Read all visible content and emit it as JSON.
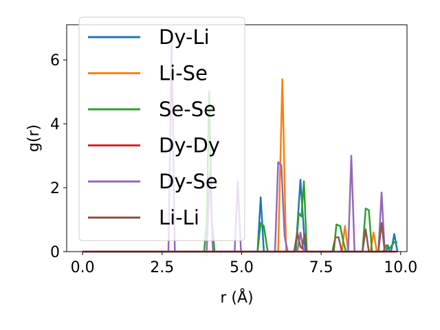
{
  "chart_data": {
    "type": "line",
    "xlabel": "r (Å)",
    "ylabel": "g(r)",
    "xlim": [
      -0.5,
      10.2
    ],
    "ylim": [
      0,
      7.1
    ],
    "xticks": [
      0.0,
      2.5,
      5.0,
      7.5,
      10.0
    ],
    "xtick_labels": [
      "0.0",
      "2.5",
      "5.0",
      "7.5",
      "10.0"
    ],
    "yticks": [
      0,
      2,
      4,
      6
    ],
    "ytick_labels": [
      "0",
      "2",
      "4",
      "6"
    ],
    "grid": false,
    "legend_position": "top-left",
    "series": [
      {
        "name": "Dy-Li",
        "color": "#1f77b4",
        "x": [
          0,
          5.5,
          5.6,
          5.7,
          6.7,
          6.85,
          7.0,
          9.55,
          9.6,
          9.65,
          9.7,
          9.8,
          9.9
        ],
        "y": [
          0,
          0,
          1.7,
          0,
          0,
          2.25,
          0,
          0,
          0.2,
          0,
          0,
          0.55,
          0
        ]
      },
      {
        "name": "Li-Se",
        "color": "#ff7f0e",
        "x": [
          0,
          6.15,
          6.28,
          6.4,
          8.15,
          8.25,
          8.35,
          9.05,
          9.15,
          9.25
        ],
        "y": [
          0,
          0,
          5.4,
          0,
          0,
          0.8,
          0,
          0,
          0.6,
          0
        ]
      },
      {
        "name": "Se-Se",
        "color": "#2ca02c",
        "x": [
          0,
          3.82,
          3.9,
          3.98,
          4.06,
          4.15,
          5.5,
          5.6,
          5.7,
          5.82,
          6.7,
          6.8,
          6.88,
          6.96,
          7.05,
          7.9,
          7.98,
          8.1,
          8.2,
          8.28,
          8.8,
          8.9,
          9.0,
          9.1,
          9.45,
          9.55,
          9.65,
          9.8,
          9.9
        ],
        "y": [
          0,
          0,
          0.9,
          5.0,
          1.0,
          0,
          0,
          0.9,
          0.8,
          0,
          0,
          1.2,
          1.1,
          2.2,
          0,
          0,
          0.85,
          0.8,
          0.3,
          0,
          0,
          1.35,
          1.3,
          0,
          0,
          0.2,
          0.1,
          0.3,
          0.3
        ]
      },
      {
        "name": "Dy-Dy",
        "color": "#d62728",
        "x": [
          0,
          9.9
        ],
        "y": [
          0,
          0
        ]
      },
      {
        "name": "Dy-Se",
        "color": "#9467bd",
        "x": [
          0,
          2.7,
          2.8,
          2.9,
          3.9,
          4.0,
          4.1,
          4.78,
          4.88,
          4.98,
          6.05,
          6.15,
          6.25,
          6.35,
          6.45,
          6.75,
          6.85,
          6.95,
          8.35,
          8.45,
          8.55,
          9.3,
          9.4,
          9.5
        ],
        "y": [
          0,
          0,
          6.6,
          0,
          0,
          2.5,
          0,
          0,
          2.2,
          0,
          0,
          2.8,
          2.7,
          0.5,
          0,
          0,
          0.6,
          0,
          0,
          3.0,
          0,
          0,
          1.85,
          0
        ]
      },
      {
        "name": "Li-Li",
        "color": "#8c564b",
        "x": [
          0,
          6.65,
          6.75,
          6.85,
          6.9,
          6.98,
          7.05,
          7.85,
          7.95,
          8.05,
          8.15,
          8.8,
          8.9,
          9.0,
          9.3,
          9.4,
          9.5
        ],
        "y": [
          0,
          0,
          0.6,
          0.15,
          0.1,
          0.55,
          0,
          0,
          0.45,
          0.45,
          0,
          0,
          0.7,
          0,
          0,
          0.9,
          0
        ]
      }
    ]
  }
}
